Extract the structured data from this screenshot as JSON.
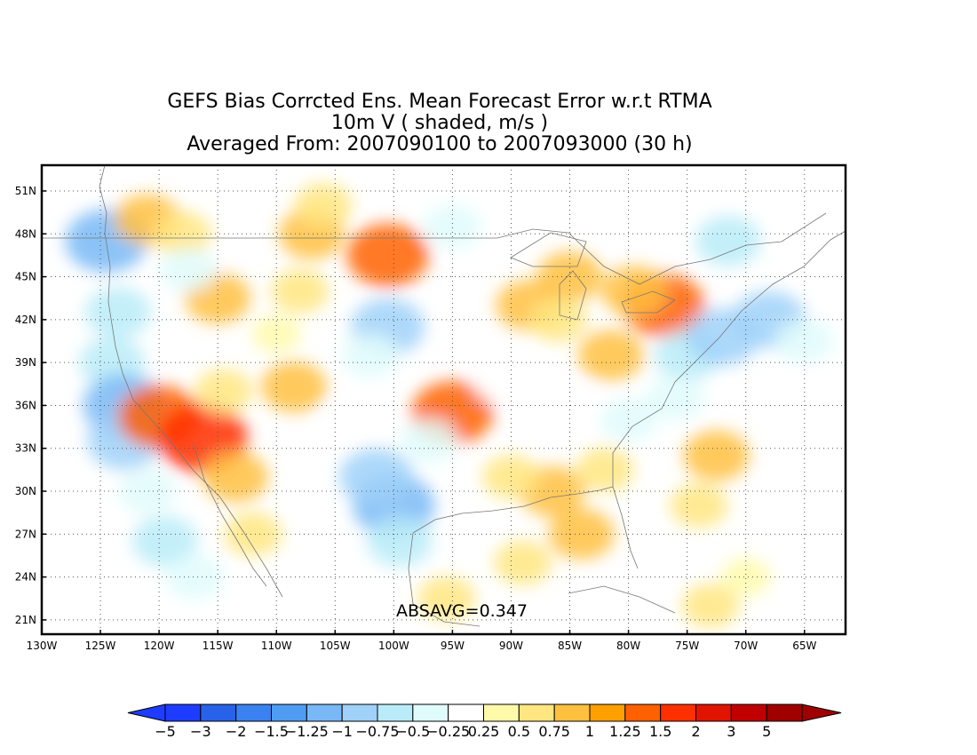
{
  "title": {
    "line1": "GEFS Bias Corrcted Ens. Mean Forecast Error w.r.t RTMA",
    "line2": "10m V ( shaded, m/s )",
    "line3": "Averaged From: 2007090100 to 2007093000 (30 h)"
  },
  "stat_label": "ABSAVG=0.347",
  "lat_labels": [
    "51N",
    "48N",
    "45N",
    "42N",
    "39N",
    "36N",
    "33N",
    "30N",
    "27N",
    "24N",
    "21N"
  ],
  "lat_values": [
    51,
    48,
    45,
    42,
    39,
    36,
    33,
    30,
    27,
    24,
    21
  ],
  "lon_labels": [
    "130W",
    "125W",
    "120W",
    "115W",
    "110W",
    "105W",
    "100W",
    "95W",
    "90W",
    "85W",
    "80W",
    "75W",
    "70W",
    "65W"
  ],
  "lon_values": [
    -130,
    -125,
    -120,
    -115,
    -110,
    -105,
    -100,
    -95,
    -90,
    -85,
    -80,
    -75,
    -70,
    -65
  ],
  "map_extent": {
    "lon_min": -130,
    "lon_max": -61.5,
    "lat_min": 20,
    "lat_max": 52.8
  },
  "colorbar": {
    "labels": [
      "−5",
      "−3",
      "−2",
      "−1.5",
      "−1.25",
      "−1",
      "−0.75",
      "−0.5",
      "−0.25",
      "0.25",
      "0.5",
      "0.75",
      "1",
      "1.25",
      "1.5",
      "2",
      "3",
      "5"
    ],
    "colors": [
      "#1e3cff",
      "#2862e8",
      "#3a82f0",
      "#4f9cf2",
      "#78b8f6",
      "#9fd1f9",
      "#b9ecf8",
      "#e0fbfc",
      "#ffffff",
      "#fffaaa",
      "#ffe680",
      "#ffc040",
      "#ffa000",
      "#ff6000",
      "#ff3000",
      "#e01400",
      "#c00000",
      "#a00000"
    ],
    "end_low_color": "#1e3cff",
    "end_high_color": "#a00000"
  },
  "blobs": [
    {
      "lon": -124.5,
      "lat": 47.5,
      "v": -1.25
    },
    {
      "lon": -123.5,
      "lat": 42.5,
      "v": -0.75
    },
    {
      "lon": -124,
      "lat": 39,
      "v": -0.75
    },
    {
      "lon": -123,
      "lat": 36,
      "v": -1.25
    },
    {
      "lon": -123,
      "lat": 33.5,
      "v": -1.0
    },
    {
      "lon": -121,
      "lat": 30,
      "v": -0.5
    },
    {
      "lon": -119.5,
      "lat": 26.5,
      "v": -0.75
    },
    {
      "lon": -117,
      "lat": 24,
      "v": -0.5
    },
    {
      "lon": -121,
      "lat": 49,
      "v": 0.75
    },
    {
      "lon": -118,
      "lat": 48,
      "v": 0.5
    },
    {
      "lon": -115,
      "lat": 43.5,
      "v": 0.75
    },
    {
      "lon": -117.5,
      "lat": 45.5,
      "v": -0.5
    },
    {
      "lon": -120,
      "lat": 35.2,
      "v": 1.25
    },
    {
      "lon": -116.3,
      "lat": 33.7,
      "v": 1.5
    },
    {
      "lon": -113.5,
      "lat": 31,
      "v": 0.75
    },
    {
      "lon": -114.5,
      "lat": 37,
      "v": 0.5
    },
    {
      "lon": -108.5,
      "lat": 37.3,
      "v": 0.75
    },
    {
      "lon": -107,
      "lat": 48,
      "v": 0.75
    },
    {
      "lon": -106,
      "lat": 50,
      "v": 0.5
    },
    {
      "lon": -108,
      "lat": 44,
      "v": 0.5
    },
    {
      "lon": -100.5,
      "lat": 46.5,
      "v": 1.25
    },
    {
      "lon": -100.5,
      "lat": 41.5,
      "v": -1.0
    },
    {
      "lon": -102,
      "lat": 39.5,
      "v": -0.5
    },
    {
      "lon": -95,
      "lat": 35.5,
      "v": 1.25
    },
    {
      "lon": -100,
      "lat": 29,
      "v": -1.25
    },
    {
      "lon": -101.5,
      "lat": 31,
      "v": -1.0
    },
    {
      "lon": -99.5,
      "lat": 26.5,
      "v": -0.75
    },
    {
      "lon": -97,
      "lat": 33.5,
      "v": -0.5
    },
    {
      "lon": -95,
      "lat": 48.5,
      "v": -0.5
    },
    {
      "lon": -104,
      "lat": 35,
      "v": -0.25
    },
    {
      "lon": -88.5,
      "lat": 43,
      "v": 0.75
    },
    {
      "lon": -85,
      "lat": 45,
      "v": 0.75
    },
    {
      "lon": -86,
      "lat": 42,
      "v": 0.5
    },
    {
      "lon": -81.5,
      "lat": 39.5,
      "v": 0.75
    },
    {
      "lon": -77,
      "lat": 43,
      "v": 1.25
    },
    {
      "lon": -79.5,
      "lat": 44,
      "v": 0.75
    },
    {
      "lon": -80,
      "lat": 35,
      "v": -0.5
    },
    {
      "lon": -75,
      "lat": 39.5,
      "v": -0.75
    },
    {
      "lon": -72,
      "lat": 40.8,
      "v": -1.0
    },
    {
      "lon": -68,
      "lat": 42,
      "v": -1.0
    },
    {
      "lon": -76,
      "lat": 36.5,
      "v": -0.5
    },
    {
      "lon": -71.5,
      "lat": 47.5,
      "v": -0.75
    },
    {
      "lon": -72.5,
      "lat": 32.5,
      "v": 0.75
    },
    {
      "lon": -74,
      "lat": 29,
      "v": 0.5
    },
    {
      "lon": -86.5,
      "lat": 30,
      "v": 0.75
    },
    {
      "lon": -90,
      "lat": 31,
      "v": 0.5
    },
    {
      "lon": -84,
      "lat": 27,
      "v": 0.75
    },
    {
      "lon": -89,
      "lat": 25,
      "v": 0.5
    },
    {
      "lon": -82,
      "lat": 31.5,
      "v": 0.5
    },
    {
      "lon": -95.5,
      "lat": 22.5,
      "v": 0.5
    },
    {
      "lon": -73,
      "lat": 22,
      "v": 0.5
    },
    {
      "lon": -70,
      "lat": 24,
      "v": 0.25
    },
    {
      "lon": -91,
      "lat": 37.5,
      "v": -0.25
    },
    {
      "lon": -84,
      "lat": 36,
      "v": -0.25
    },
    {
      "lon": -110,
      "lat": 41,
      "v": 0.25
    },
    {
      "lon": -112,
      "lat": 27,
      "v": 0.5
    },
    {
      "lon": -65,
      "lat": 40.5,
      "v": -0.5
    }
  ]
}
